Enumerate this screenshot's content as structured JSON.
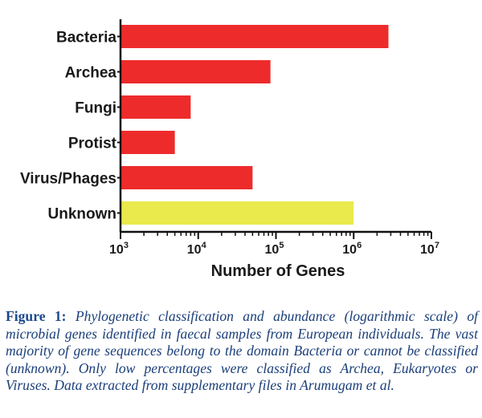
{
  "chart_data": {
    "type": "bar",
    "orientation": "horizontal",
    "categories": [
      "Bacteria",
      "Archea",
      "Fungi",
      "Protist",
      "Virus/Phages",
      "Unknown"
    ],
    "values": [
      2800000,
      85000,
      8000,
      5000,
      50000,
      1000000
    ],
    "colors": [
      "#ee2b2b",
      "#ee2b2b",
      "#ee2b2b",
      "#ee2b2b",
      "#ee2b2b",
      "#eaea4d"
    ],
    "xscale": "log",
    "xlim": [
      1000,
      10000000
    ],
    "xticks": [
      {
        "value": 1000,
        "base": "10",
        "exp": "3"
      },
      {
        "value": 10000,
        "base": "10",
        "exp": "4"
      },
      {
        "value": 100000,
        "base": "10",
        "exp": "5"
      },
      {
        "value": 1000000,
        "base": "10",
        "exp": "6"
      },
      {
        "value": 10000000,
        "base": "10",
        "exp": "7"
      }
    ],
    "xlabel": "Number of Genes",
    "ylabel": "",
    "grid": false
  },
  "caption": {
    "label": "Figure 1:",
    "text": "Phylogenetic classification and abundance (logarithmic scale) of microbial genes identified in faecal samples from European individuals. The vast majority of gene sequences belong to the domain Bacteria or cannot be classified (unknown). Only low percentages were classified as Archea, Eukaryotes or Viruses. Data extracted from supplementary files in Arumugam et al."
  }
}
